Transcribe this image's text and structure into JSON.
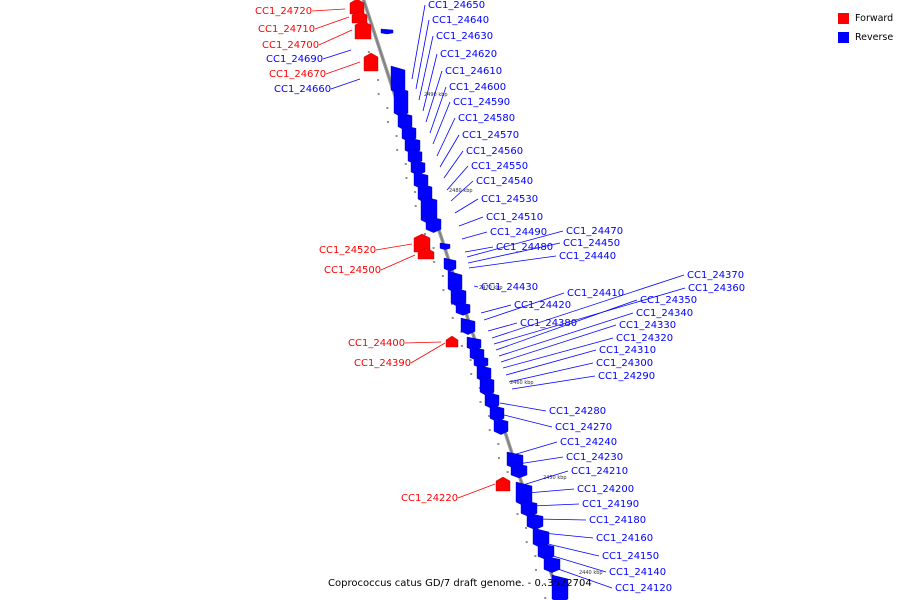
{
  "colors": {
    "forward": "#ff0000",
    "reverse": "#0000ff",
    "axis": "#999999"
  },
  "legend": {
    "forward_label": "Forward",
    "reverse_label": "Reverse"
  },
  "caption": "Coprococcus catus GD/7 draft genome. - 0..3522704",
  "scale_labels": [
    "2490 kbp",
    "2480 kbp",
    "2470 kbp",
    "2460 kbp",
    "2450 kbp",
    "2440 kbp"
  ],
  "forward_genes": [
    "CC1_24720",
    "CC1_24710",
    "CC1_24700",
    "CC1_24670",
    "CC1_24520",
    "CC1_24500",
    "CC1_24400",
    "CC1_24390",
    "CC1_24220"
  ],
  "reverse_genes": [
    "CC1_24690",
    "CC1_24660",
    "CC1_24650",
    "CC1_24640",
    "CC1_24630",
    "CC1_24620",
    "CC1_24610",
    "CC1_24600",
    "CC1_24590",
    "CC1_24580",
    "CC1_24570",
    "CC1_24560",
    "CC1_24550",
    "CC1_24540",
    "CC1_24530",
    "CC1_24510",
    "CC1_24490",
    "CC1_24480",
    "CC1_24470",
    "CC1_24450",
    "CC1_24440",
    "CC1_24430",
    "CC1_24420",
    "CC1_24410",
    "CC1_24380",
    "CC1_24370",
    "CC1_24360",
    "CC1_24350",
    "CC1_24340",
    "CC1_24330",
    "CC1_24320",
    "CC1_24310",
    "CC1_24300",
    "CC1_24290",
    "CC1_24280",
    "CC1_24270",
    "CC1_24240",
    "CC1_24230",
    "CC1_24210",
    "CC1_24200",
    "CC1_24190",
    "CC1_24180",
    "CC1_24160",
    "CC1_24150",
    "CC1_24140",
    "CC1_24120"
  ]
}
